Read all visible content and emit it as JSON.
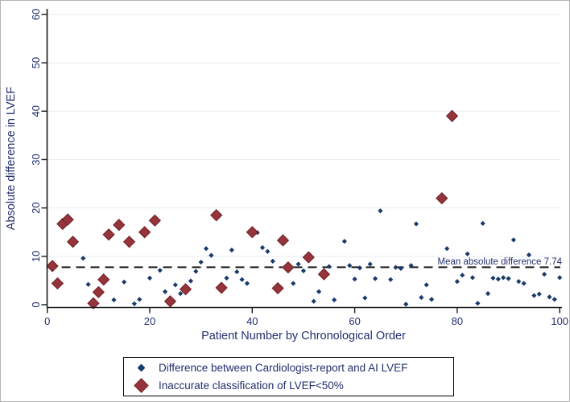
{
  "figure": {
    "kind": "stata-style scatter plot",
    "background": "#ffffff",
    "border_color": "#b4b4b4"
  },
  "chart_data": {
    "type": "scatter",
    "title": "",
    "xlabel": "Patient Number by Chronological Order",
    "ylabel": "Absolute difference in LVEF",
    "xlim": [
      0,
      100
    ],
    "ylim": [
      0,
      60
    ],
    "x_ticks": [
      0,
      20,
      40,
      60,
      80,
      100
    ],
    "y_ticks": [
      0,
      10,
      20,
      30,
      40,
      50,
      60
    ],
    "grid": "horizontal-light-blue",
    "legend_position": "bottom-center-boxed",
    "mean_line": {
      "y": 7.74,
      "style": "dashed",
      "label": "Mean absolute difference 7.74"
    },
    "series": [
      {
        "name": "Difference between Cardiologist-report and AI LVEF",
        "marker": "small-diamond",
        "color": "#1a3a6b",
        "points": [
          [
            7,
            9.6
          ],
          [
            8,
            4.2
          ],
          [
            13,
            1.0
          ],
          [
            15,
            4.7
          ],
          [
            17,
            0.2
          ],
          [
            18,
            1.1
          ],
          [
            20,
            5.5
          ],
          [
            22,
            7.1
          ],
          [
            23,
            2.7
          ],
          [
            25,
            4.1
          ],
          [
            26,
            2.3
          ],
          [
            28,
            4.9
          ],
          [
            29,
            6.9
          ],
          [
            30,
            8.8
          ],
          [
            31,
            11.6
          ],
          [
            32,
            10.2
          ],
          [
            35,
            5.5
          ],
          [
            36,
            11.3
          ],
          [
            37,
            6.8
          ],
          [
            38,
            5.2
          ],
          [
            39,
            4.4
          ],
          [
            41,
            14.9
          ],
          [
            42,
            11.8
          ],
          [
            43,
            11.0
          ],
          [
            44,
            9.0
          ],
          [
            48,
            4.4
          ],
          [
            49,
            8.4
          ],
          [
            50,
            7.0
          ],
          [
            52,
            0.7
          ],
          [
            53,
            2.7
          ],
          [
            55,
            7.9
          ],
          [
            56,
            1.0
          ],
          [
            58,
            13.1
          ],
          [
            59,
            8.1
          ],
          [
            60,
            5.3
          ],
          [
            61,
            7.6
          ],
          [
            62,
            1.4
          ],
          [
            63,
            8.4
          ],
          [
            64,
            5.4
          ],
          [
            65,
            19.4
          ],
          [
            67,
            5.2
          ],
          [
            68,
            7.7
          ],
          [
            69,
            7.5
          ],
          [
            70,
            0.1
          ],
          [
            71,
            8.1
          ],
          [
            72,
            16.7
          ],
          [
            73,
            1.5
          ],
          [
            74,
            4.1
          ],
          [
            75,
            1.1
          ],
          [
            78,
            11.6
          ],
          [
            80,
            4.8
          ],
          [
            81,
            6.1
          ],
          [
            82,
            10.5
          ],
          [
            83,
            5.6
          ],
          [
            84,
            0.3
          ],
          [
            85,
            16.8
          ],
          [
            86,
            2.3
          ],
          [
            87,
            5.5
          ],
          [
            88,
            5.3
          ],
          [
            89,
            5.6
          ],
          [
            90,
            5.4
          ],
          [
            91,
            13.4
          ],
          [
            92,
            4.8
          ],
          [
            93,
            4.4
          ],
          [
            94,
            10.3
          ],
          [
            95,
            1.9
          ],
          [
            96,
            2.2
          ],
          [
            97,
            6.3
          ],
          [
            98,
            1.6
          ],
          [
            99,
            1.1
          ],
          [
            100,
            5.6
          ]
        ]
      },
      {
        "name": "Inaccurate classification of LVEF<50%",
        "marker": "large-diamond",
        "color": "#96343c",
        "points": [
          [
            1,
            8.0
          ],
          [
            2,
            4.4
          ],
          [
            3,
            16.7
          ],
          [
            4,
            17.6
          ],
          [
            5,
            13.0
          ],
          [
            9,
            0.3
          ],
          [
            10,
            2.6
          ],
          [
            11,
            5.2
          ],
          [
            12,
            14.5
          ],
          [
            14,
            16.5
          ],
          [
            16,
            13.0
          ],
          [
            19,
            15.0
          ],
          [
            21,
            17.4
          ],
          [
            24,
            0.7
          ],
          [
            27,
            3.2
          ],
          [
            33,
            18.5
          ],
          [
            34,
            3.5
          ],
          [
            40,
            15.0
          ],
          [
            45,
            3.4
          ],
          [
            46,
            13.3
          ],
          [
            47,
            7.7
          ],
          [
            51,
            9.8
          ],
          [
            54,
            6.3
          ],
          [
            77,
            22.0
          ],
          [
            79,
            39.0
          ]
        ]
      }
    ],
    "colors": {
      "blue_marker": "#1a3a6b",
      "red_marker_fill": "#96343c",
      "red_marker_border": "#76242a",
      "text_navy": "#242f6e",
      "gridline": "#e4edf4",
      "axis_line": "#1a1a1a",
      "dashed_line": "#1a1a1a"
    }
  }
}
